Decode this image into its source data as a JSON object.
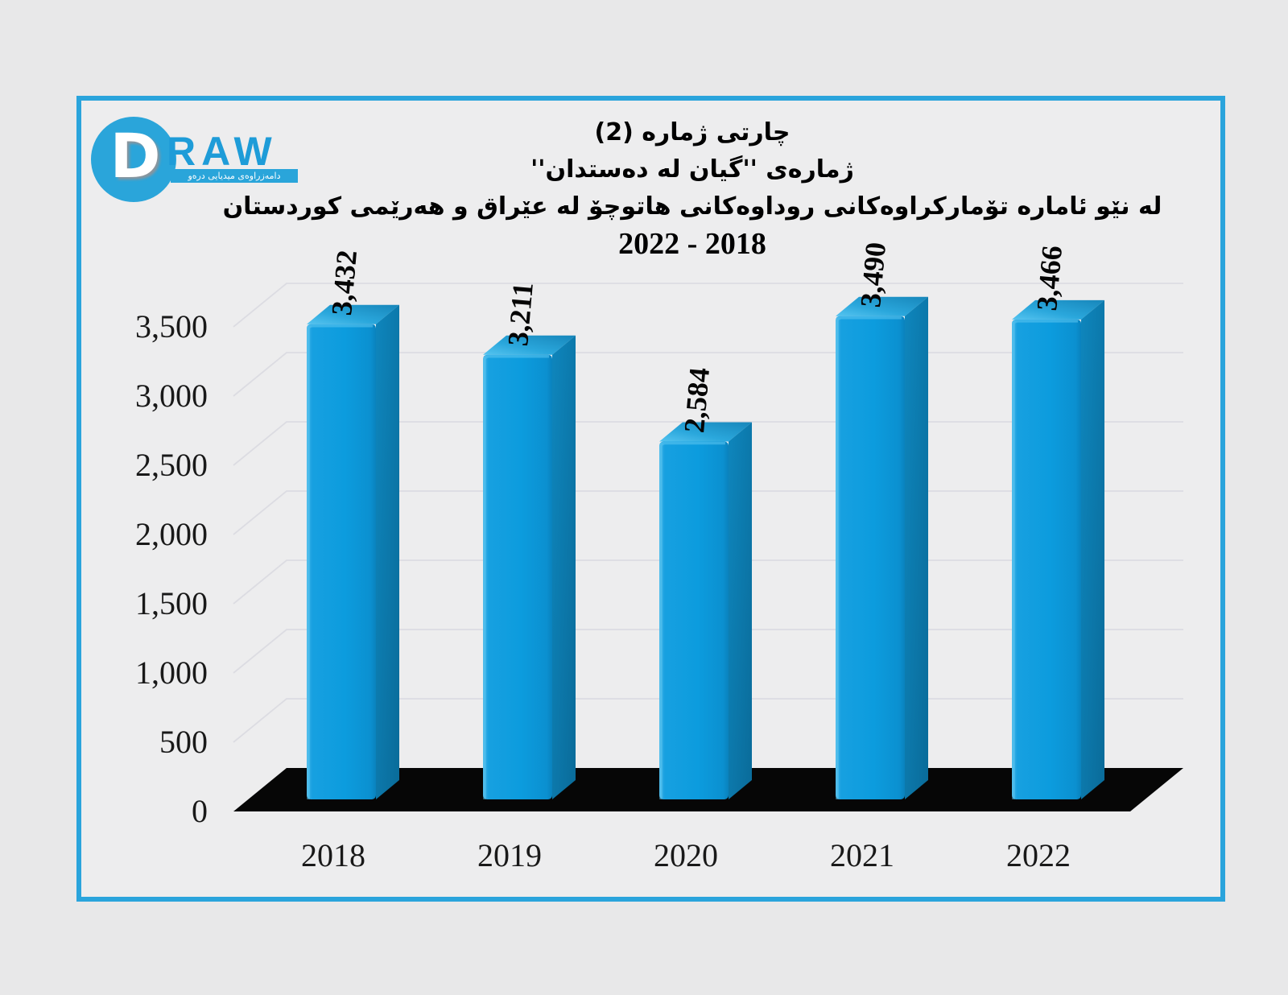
{
  "logo": {
    "d_letter": "D",
    "word": "RAW",
    "tagline": "دامەزراوەی میدیایی درەو"
  },
  "title": {
    "line1": "چارتی ژماره (2)",
    "line2": "ژمارەی ''گیان له دەستدان''",
    "line3": "له نێو ئاماره تۆمارکراوەکانی روداوەکانی هاتوچۆ له عێراق و هەرێمی کوردستان",
    "line4": "2022 - 2018"
  },
  "chart_data": {
    "type": "bar",
    "style": "3d-column",
    "categories": [
      "2018",
      "2019",
      "2020",
      "2021",
      "2022"
    ],
    "values": [
      3432,
      3211,
      2584,
      3490,
      3466
    ],
    "value_labels": [
      "3,432",
      "3,211",
      "2,584",
      "3,490",
      "3,466"
    ],
    "y_ticks": [
      0,
      500,
      1000,
      1500,
      2000,
      2500,
      3000,
      3500
    ],
    "y_tick_labels": [
      "0",
      "500",
      "1,000",
      "1,500",
      "2,000",
      "2,500",
      "3,000",
      "3,500"
    ],
    "ylim": [
      0,
      3500
    ],
    "grid": true,
    "legend": "none",
    "xlabel": "",
    "ylabel": "",
    "bar_front_color": "#0d9dde",
    "bar_top_color": "#2aa7dc",
    "bar_side_color": "#0c77a9",
    "floor_color": "#060606"
  },
  "colors": {
    "border": "#2aa4dc",
    "panel_bg": "#ededee",
    "page_bg": "#e8e8e9",
    "grid": "#dcdce2",
    "logo_blue": "#2aa5da",
    "logo_word_blue": "#1e9cd8",
    "text": "#000000"
  }
}
